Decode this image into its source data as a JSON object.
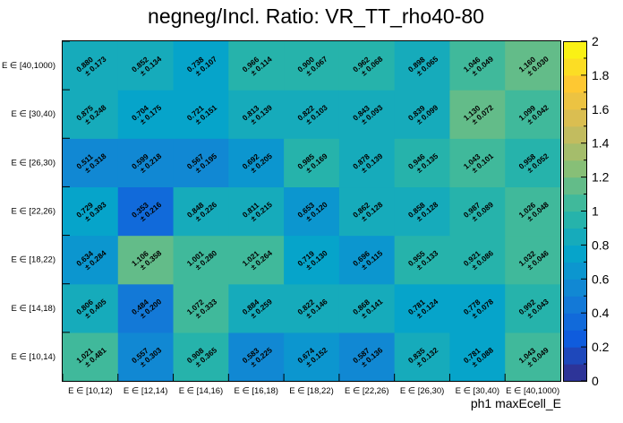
{
  "chart_data": {
    "type": "heatmap",
    "title": "negneg/Incl. Ratio: VR_TT_rho40-80",
    "xlabel": "ph1 maxEcell_E",
    "ylabel": "",
    "x_categories": [
      "E ∈ [10,12)",
      "E ∈ [12,14)",
      "E ∈ [14,16)",
      "E ∈ [16,18)",
      "E ∈ [18,22)",
      "E ∈ [22,26)",
      "E ∈ [26,30)",
      "E ∈ [30,40)",
      "E ∈ [40,1000)"
    ],
    "y_categories": [
      "E ∈ [10,14)",
      "E ∈ [14,18)",
      "E ∈ [18,22)",
      "E ∈ [22,26)",
      "E ∈ [26,30)",
      "E ∈ [30,40)",
      "E ∈ [40,1000)"
    ],
    "values": [
      [
        1.021,
        0.557,
        0.908,
        0.583,
        0.674,
        0.587,
        0.835,
        0.781,
        1.043
      ],
      [
        0.806,
        0.484,
        1.072,
        0.884,
        0.822,
        0.868,
        0.781,
        0.778,
        0.992
      ],
      [
        0.634,
        1.106,
        1.001,
        1.021,
        0.719,
        0.696,
        0.955,
        0.921,
        1.032
      ],
      [
        0.729,
        0.353,
        0.848,
        0.811,
        0.653,
        0.862,
        0.858,
        0.987,
        1.026
      ],
      [
        0.511,
        0.599,
        0.567,
        0.692,
        0.985,
        0.878,
        0.946,
        1.043,
        0.958
      ],
      [
        0.875,
        0.704,
        0.721,
        0.813,
        0.822,
        0.843,
        0.839,
        1.13,
        1.099
      ],
      [
        0.88,
        0.852,
        0.738,
        0.966,
        0.9,
        0.962,
        0.898,
        1.046,
        1.16
      ]
    ],
    "errors": [
      [
        0.481,
        0.303,
        0.365,
        0.225,
        0.152,
        0.136,
        0.132,
        0.088,
        0.049
      ],
      [
        0.405,
        0.2,
        0.333,
        0.259,
        0.146,
        0.141,
        0.124,
        0.078,
        0.043
      ],
      [
        0.284,
        0.358,
        0.28,
        0.264,
        0.13,
        0.115,
        0.133,
        0.086,
        0.046
      ],
      [
        0.393,
        0.216,
        0.226,
        0.215,
        0.12,
        0.128,
        0.128,
        0.089,
        0.048
      ],
      [
        0.318,
        0.218,
        0.195,
        0.205,
        0.169,
        0.139,
        0.135,
        0.101,
        0.052
      ],
      [
        0.248,
        0.175,
        0.151,
        0.139,
        0.103,
        0.093,
        0.099,
        0.072,
        0.042
      ],
      [
        0.173,
        0.134,
        0.107,
        0.114,
        0.067,
        0.068,
        0.065,
        0.049,
        0.03
      ]
    ],
    "z_range": [
      0,
      2
    ],
    "z_ticks": [
      "0",
      "0.2",
      "0.4",
      "0.6",
      "0.8",
      "1",
      "1.2",
      "1.4",
      "1.6",
      "1.8",
      "2"
    ],
    "colormap": "kBird (ROOT)",
    "grid": false,
    "colorbar_position": "right"
  }
}
